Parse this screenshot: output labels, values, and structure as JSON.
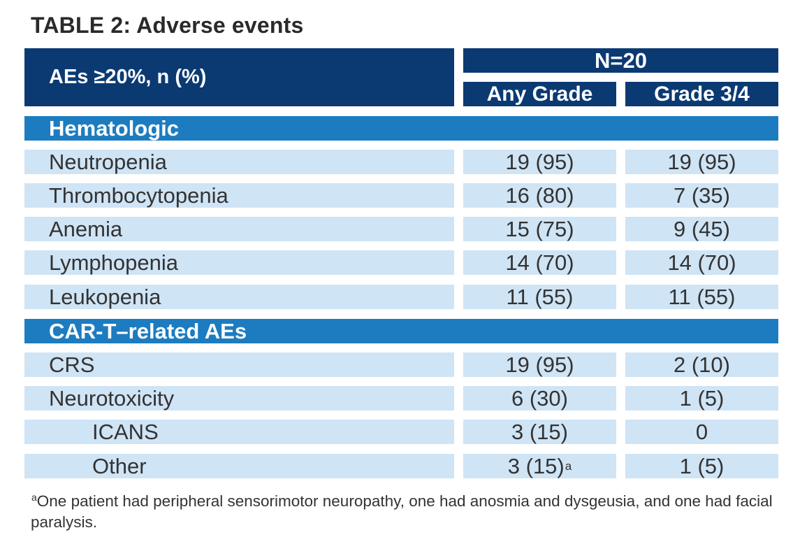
{
  "title": "TABLE 2: Adverse events",
  "header": {
    "label_col": "AEs ≥20%, n (%)",
    "group": "N=20",
    "col_any": "Any Grade",
    "col_g34": "Grade 3/4"
  },
  "sections": [
    {
      "name": "Hematologic",
      "rows": [
        {
          "label": "Neutropenia",
          "any": "19 (95)",
          "g34": "19 (95)"
        },
        {
          "label": "Thrombocytopenia",
          "any": "16 (80)",
          "g34": "7 (35)"
        },
        {
          "label": "Anemia",
          "any": "15 (75)",
          "g34": "9 (45)"
        },
        {
          "label": "Lymphopenia",
          "any": "14 (70)",
          "g34": "14 (70)"
        },
        {
          "label": "Leukopenia",
          "any": "11 (55)",
          "g34": "11 (55)"
        }
      ]
    },
    {
      "name": "CAR-T–related AEs",
      "rows": [
        {
          "label": "CRS",
          "any": "19 (95)",
          "g34": "2 (10)"
        },
        {
          "label": "Neurotoxicity",
          "any": "6 (30)",
          "g34": "1 (5)"
        },
        {
          "label": "ICANS",
          "any": "3 (15)",
          "g34": "0"
        },
        {
          "label": "Other",
          "any": "3 (15)",
          "any_sup": "a",
          "g34": "1 (5)"
        }
      ]
    }
  ],
  "footnote": {
    "marker": "a",
    "text": "One patient had peripheral sensorimotor neuropathy, one had anosmia and dysgeusia, and one had facial paralysis."
  }
}
